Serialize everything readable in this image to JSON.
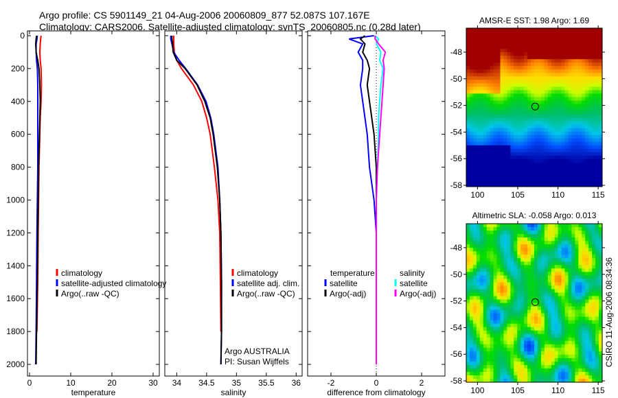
{
  "title": {
    "line1": "Argo profile: CS 5901149_21 04-Aug-2006 20060809_877 52.087S 107.167E",
    "line2": "Climatology: CARS2006. Satellite-adjusted climatology: synTS_20060805.nc (0.28d later)"
  },
  "side_text": "CSIRO 11-Aug-2006 08:34:36",
  "chart_data": [
    {
      "type": "line",
      "id": "temperature",
      "xlabel": "temperature",
      "ylabel": "",
      "xlim": [
        -0.5,
        31.5
      ],
      "ylim": [
        2070,
        0
      ],
      "xticks": [
        "0",
        "10",
        "20",
        "30"
      ],
      "xtick_values": [
        0,
        10,
        20,
        30
      ],
      "yticks": [
        "0",
        "200",
        "400",
        "600",
        "800",
        "1000",
        "1200",
        "1400",
        "1600",
        "1800",
        "2000"
      ],
      "ytick_values": [
        0,
        200,
        400,
        600,
        800,
        1000,
        1200,
        1400,
        1600,
        1800,
        2000
      ],
      "depth": [
        0,
        20,
        50,
        100,
        150,
        200,
        300,
        400,
        500,
        600,
        800,
        1000,
        1200,
        1500,
        1800,
        2000
      ],
      "series": [
        {
          "name": "climatology",
          "color": "#ff0000",
          "values": [
            2.8,
            2.7,
            2.6,
            2.5,
            2.6,
            2.8,
            2.9,
            2.8,
            2.6,
            2.5,
            2.3,
            2.2,
            2.1,
            2.0,
            1.8,
            null
          ]
        },
        {
          "name": "satellite-adjusted climatology",
          "color": "#0000ff",
          "values": [
            1.9,
            1.8,
            1.6,
            1.6,
            1.7,
            1.9,
            2.0,
            2.0,
            2.0,
            2.0,
            2.0,
            1.9,
            1.8,
            1.7,
            1.6,
            1.5
          ]
        },
        {
          "name": "Argo(..raw -QC)",
          "color": "#000000",
          "values": [
            1.7,
            1.6,
            1.5,
            1.6,
            2.0,
            2.3,
            2.5,
            2.6,
            2.5,
            2.4,
            2.2,
            2.1,
            2.0,
            1.9,
            1.7,
            1.6
          ]
        }
      ],
      "legend": [
        "climatology",
        "satellite-adjusted climatology",
        "Argo(..raw -QC)"
      ],
      "legend_position": "lower-right"
    },
    {
      "type": "line",
      "id": "salinity",
      "xlabel": "salinity",
      "xlim": [
        33.8,
        36.1
      ],
      "ylim": [
        2070,
        0
      ],
      "xticks": [
        "34",
        "34.5",
        "35",
        "35.5",
        "36"
      ],
      "xtick_values": [
        34,
        34.5,
        35,
        35.5,
        36
      ],
      "depth": [
        0,
        20,
        50,
        100,
        150,
        200,
        300,
        400,
        500,
        600,
        800,
        1000,
        1200,
        1500,
        1800,
        2000
      ],
      "series": [
        {
          "name": "climatology",
          "color": "#ff0000",
          "values": [
            33.95,
            33.95,
            33.95,
            33.96,
            34.0,
            34.08,
            34.28,
            34.42,
            34.5,
            34.56,
            34.63,
            34.69,
            34.72,
            34.73,
            34.74,
            null
          ]
        },
        {
          "name": "satellite adj. clim.",
          "color": "#0000ff",
          "values": [
            33.9,
            33.9,
            33.92,
            33.95,
            34.04,
            34.15,
            34.35,
            34.49,
            34.57,
            34.62,
            34.69,
            34.72,
            34.74,
            34.75,
            34.75,
            34.74
          ]
        },
        {
          "name": "Argo(..raw -QC)",
          "color": "#000000",
          "values": [
            33.92,
            33.92,
            33.93,
            33.94,
            34.0,
            34.14,
            34.34,
            34.47,
            34.56,
            34.61,
            34.68,
            34.72,
            34.74,
            34.75,
            34.75,
            34.74
          ]
        }
      ],
      "legend": [
        "climatology",
        "satellite adj. clim.",
        "Argo(..raw -QC)"
      ],
      "annotations": [
        "Argo AUSTRALIA",
        "PI: Susan Wijffels"
      ]
    },
    {
      "type": "line",
      "id": "difference",
      "xlabel": "difference from climatology",
      "xlim": [
        -3.03,
        3.03
      ],
      "ylim": [
        2070,
        0
      ],
      "xticks": [
        "-2",
        "0",
        "2"
      ],
      "xtick_values": [
        -2,
        0,
        2
      ],
      "depth": [
        0,
        20,
        50,
        100,
        150,
        200,
        300,
        400,
        500,
        600,
        800,
        1000,
        1200,
        1500,
        1800,
        2000
      ],
      "series": [
        {
          "name": "temperature satellite",
          "color": "#0000ff",
          "values": [
            -0.1,
            -1.2,
            -0.6,
            -0.8,
            -0.6,
            -0.6,
            -0.7,
            -0.6,
            -0.5,
            -0.4,
            -0.3,
            -0.1,
            0,
            0,
            0,
            0
          ]
        },
        {
          "name": "temperature Argo(-adj)",
          "color": "#000000",
          "values": [
            -0.5,
            -0.7,
            -0.5,
            -0.6,
            -0.4,
            -0.3,
            -0.4,
            -0.3,
            -0.2,
            -0.1,
            0,
            0,
            0,
            0,
            0,
            0
          ]
        },
        {
          "name": "salinity satellite",
          "color": "#00ffff",
          "values": [
            -0.05,
            0.1,
            0,
            0.2,
            0.15,
            0.3,
            0.2,
            0.15,
            0.1,
            0.1,
            0.05,
            0,
            0,
            0,
            0,
            0
          ]
        },
        {
          "name": "salinity Argo(-adj)",
          "color": "#ff00ff",
          "values": [
            -0.05,
            -0.05,
            0.1,
            0.4,
            0.3,
            0.35,
            0.3,
            0.25,
            0.2,
            0.15,
            0.05,
            0,
            0,
            0,
            0,
            0
          ]
        }
      ],
      "legend_headers": [
        "temperature",
        "salinity"
      ],
      "legend": [
        "satellite",
        "Argo(-adj)",
        "satellite",
        "Argo(-adj)"
      ]
    },
    {
      "type": "heatmap",
      "id": "sst-map",
      "title": "AMSR-E SST: 1.98 Argo: 1.69",
      "xlim": [
        98.6,
        115.5
      ],
      "ylim": [
        -58.1,
        -46.2
      ],
      "xticks": [
        "100",
        "105",
        "110",
        "115"
      ],
      "xtick_values": [
        100,
        105,
        110,
        115
      ],
      "yticks": [
        "-48",
        "-50",
        "-52",
        "-54",
        "-56",
        "-58"
      ],
      "ytick_values": [
        -48,
        -50,
        -52,
        -54,
        -56,
        -58
      ],
      "marker": {
        "lon": 107.167,
        "lat": -52.087
      }
    },
    {
      "type": "heatmap",
      "id": "sla-map",
      "title": "Altimetric SLA: -0.058 Argo: 0.013",
      "xlim": [
        98.6,
        115.5
      ],
      "ylim": [
        -58.1,
        -46.2
      ],
      "xticks": [
        "100",
        "105",
        "110",
        "115"
      ],
      "xtick_values": [
        100,
        105,
        110,
        115
      ],
      "yticks": [
        "-48",
        "-50",
        "-52",
        "-54",
        "-56",
        "-58"
      ],
      "ytick_values": [
        -48,
        -50,
        -52,
        -54,
        -56,
        -58
      ],
      "marker": {
        "lon": 107.167,
        "lat": -52.087
      }
    }
  ]
}
